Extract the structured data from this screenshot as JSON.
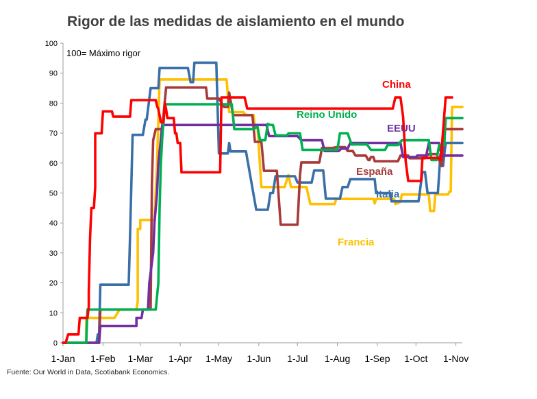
{
  "chart_data": {
    "type": "line",
    "title": "Rigor de las medidas de aislamiento en el mundo",
    "annotation": "100= Máximo rigor",
    "source": "Fuente: Our World in Data, Scotiabank Economics.",
    "ylim": [
      0,
      100
    ],
    "yticks": [
      "0",
      "10",
      "20",
      "30",
      "40",
      "50",
      "60",
      "70",
      "80",
      "90",
      "100"
    ],
    "x_unit": "day of year 2020 (1 = 1-Jan)",
    "xlim": [
      1,
      311
    ],
    "xticks": [
      {
        "label": "1-Jan",
        "day": 1
      },
      {
        "label": "1-Feb",
        "day": 32
      },
      {
        "label": "1-Mar",
        "day": 61
      },
      {
        "label": "1-Apr",
        "day": 92
      },
      {
        "label": "1-May",
        "day": 122
      },
      {
        "label": "1-Jun",
        "day": 153
      },
      {
        "label": "1-Jul",
        "day": 183
      },
      {
        "label": "1-Aug",
        "day": 214
      },
      {
        "label": "1-Sep",
        "day": 245
      },
      {
        "label": "1-Oct",
        "day": 275
      },
      {
        "label": "1-Nov",
        "day": 306
      }
    ],
    "series": [
      {
        "name": "Francia",
        "label": "Francia",
        "color": "#FFC000",
        "points": [
          [
            1,
            0
          ],
          [
            19,
            0
          ],
          [
            19,
            8.3
          ],
          [
            41,
            8.3
          ],
          [
            45,
            11.1
          ],
          [
            58,
            11.1
          ],
          [
            59,
            13.9
          ],
          [
            59,
            38
          ],
          [
            61,
            38
          ],
          [
            61,
            41
          ],
          [
            72,
            41
          ],
          [
            74,
            60
          ],
          [
            76,
            87.9
          ],
          [
            113,
            87.9
          ],
          [
            124,
            87.9
          ],
          [
            128,
            87.9
          ],
          [
            130,
            77
          ],
          [
            141,
            77
          ],
          [
            143,
            76
          ],
          [
            149,
            76
          ],
          [
            150,
            72
          ],
          [
            152,
            72
          ],
          [
            155,
            52
          ],
          [
            158,
            52
          ],
          [
            173,
            52
          ],
          [
            176,
            56
          ],
          [
            178,
            52
          ],
          [
            190,
            52
          ],
          [
            193,
            46.3
          ],
          [
            212,
            46.3
          ],
          [
            213,
            48
          ],
          [
            242,
            48
          ],
          [
            243,
            46.5
          ],
          [
            244,
            48
          ],
          [
            258,
            48
          ],
          [
            259,
            46.3
          ],
          [
            263,
            47
          ],
          [
            264,
            49.5
          ],
          [
            285,
            49.5
          ],
          [
            286,
            44
          ],
          [
            289,
            44
          ],
          [
            290,
            49.5
          ],
          [
            300,
            49.5
          ],
          [
            301,
            50.5
          ],
          [
            302,
            50.5
          ],
          [
            303,
            78.7
          ],
          [
            311,
            78.7
          ]
        ]
      },
      {
        "name": "Italia",
        "label": "Italia",
        "color": "#3A6FA8",
        "points": [
          [
            1,
            0
          ],
          [
            27,
            0
          ],
          [
            28,
            2.8
          ],
          [
            29,
            2.8
          ],
          [
            30,
            19.4
          ],
          [
            52,
            19.4
          ],
          [
            53,
            35
          ],
          [
            55,
            69.4
          ],
          [
            63,
            69.4
          ],
          [
            65,
            74.5
          ],
          [
            66,
            74.5
          ],
          [
            69,
            85
          ],
          [
            75,
            85
          ],
          [
            76,
            91.7
          ],
          [
            98,
            91.7
          ],
          [
            100,
            87
          ],
          [
            102,
            87
          ],
          [
            103,
            93.5
          ],
          [
            120,
            93.5
          ],
          [
            122,
            63.2
          ],
          [
            129,
            63.2
          ],
          [
            130,
            66.7
          ],
          [
            131,
            63.9
          ],
          [
            143,
            63.9
          ],
          [
            151,
            44.4
          ],
          [
            160,
            44.4
          ],
          [
            162,
            50
          ],
          [
            164,
            50
          ],
          [
            166,
            55.6
          ],
          [
            181,
            55.6
          ],
          [
            183,
            53.5
          ],
          [
            194,
            53.5
          ],
          [
            196,
            57.5
          ],
          [
            203,
            57.5
          ],
          [
            205,
            48.1
          ],
          [
            216,
            48.1
          ],
          [
            218,
            52
          ],
          [
            222,
            52
          ],
          [
            224,
            54.6
          ],
          [
            243,
            54.6
          ],
          [
            244,
            50
          ],
          [
            255,
            50
          ],
          [
            256,
            47.2
          ],
          [
            277,
            47.2
          ],
          [
            280,
            57
          ],
          [
            282,
            57
          ],
          [
            284,
            50
          ],
          [
            292,
            50
          ],
          [
            294,
            63
          ],
          [
            296,
            59
          ],
          [
            298,
            66.7
          ],
          [
            311,
            66.7
          ]
        ]
      },
      {
        "name": "España",
        "label": "España",
        "color": "#A83A3A",
        "points": [
          [
            1,
            0
          ],
          [
            29,
            0
          ],
          [
            30,
            11.1
          ],
          [
            69,
            11.1
          ],
          [
            70,
            53
          ],
          [
            71,
            67.6
          ],
          [
            73,
            71.3
          ],
          [
            78,
            71.3
          ],
          [
            81,
            85.2
          ],
          [
            101,
            85.2
          ],
          [
            104,
            85.2
          ],
          [
            112,
            85.2
          ],
          [
            113,
            81.5
          ],
          [
            122,
            81.5
          ],
          [
            126,
            78.7
          ],
          [
            129,
            78.7
          ],
          [
            130,
            83.5
          ],
          [
            133,
            76
          ],
          [
            148,
            76
          ],
          [
            150,
            67.1
          ],
          [
            155,
            67.1
          ],
          [
            157,
            57.4
          ],
          [
            167,
            57.4
          ],
          [
            170,
            39.4
          ],
          [
            183,
            39.4
          ],
          [
            185,
            56
          ],
          [
            186,
            60.2
          ],
          [
            200,
            60.2
          ],
          [
            202,
            65
          ],
          [
            210,
            65
          ],
          [
            213,
            65.3
          ],
          [
            220,
            65.3
          ],
          [
            222,
            64
          ],
          [
            226,
            64
          ],
          [
            228,
            62.5
          ],
          [
            236,
            62.5
          ],
          [
            238,
            61
          ],
          [
            239,
            61
          ],
          [
            240,
            62
          ],
          [
            242,
            62
          ],
          [
            243,
            60.6
          ],
          [
            261,
            60.6
          ],
          [
            263,
            62.5
          ],
          [
            269,
            62.5
          ],
          [
            270,
            61.6
          ],
          [
            282,
            61.6
          ],
          [
            285,
            63
          ],
          [
            291,
            63
          ],
          [
            293,
            61
          ],
          [
            295,
            59
          ],
          [
            297,
            71.3
          ],
          [
            305,
            71.3
          ],
          [
            306,
            71.3
          ],
          [
            311,
            71.3
          ]
        ]
      },
      {
        "name": "EEUU",
        "label": "EEUU",
        "color": "#7030A0",
        "points": [
          [
            1,
            0
          ],
          [
            29,
            0
          ],
          [
            30,
            5.6
          ],
          [
            57,
            5.6
          ],
          [
            58,
            5.6
          ],
          [
            58,
            8.3
          ],
          [
            62,
            8.3
          ],
          [
            63,
            11.1
          ],
          [
            67,
            11.1
          ],
          [
            68,
            20
          ],
          [
            71,
            30
          ],
          [
            72,
            40
          ],
          [
            74,
            50
          ],
          [
            75,
            60
          ],
          [
            77,
            68
          ],
          [
            78,
            72.7
          ],
          [
            140,
            72.7
          ],
          [
            141,
            72.7
          ],
          [
            159,
            72.7
          ],
          [
            161,
            69
          ],
          [
            183,
            69
          ],
          [
            186,
            67.6
          ],
          [
            202,
            67.6
          ],
          [
            204,
            64
          ],
          [
            215,
            64
          ],
          [
            217,
            64.8
          ],
          [
            222,
            64.8
          ],
          [
            224,
            66.7
          ],
          [
            263,
            66.7
          ],
          [
            265,
            62
          ],
          [
            275,
            62
          ],
          [
            276,
            62.5
          ],
          [
            283,
            62.5
          ],
          [
            285,
            66.7
          ],
          [
            293,
            66.7
          ],
          [
            295,
            62.5
          ],
          [
            311,
            62.5
          ]
        ]
      },
      {
        "name": "Reino Unido",
        "label": "Reino Unido",
        "color": "#00B050",
        "points": [
          [
            1,
            0
          ],
          [
            19,
            0
          ],
          [
            20,
            11.1
          ],
          [
            48,
            11.1
          ],
          [
            50,
            11.1
          ],
          [
            73,
            11.1
          ],
          [
            75,
            20
          ],
          [
            76,
            45
          ],
          [
            77,
            60
          ],
          [
            78,
            68
          ],
          [
            80,
            79.6
          ],
          [
            129,
            79.6
          ],
          [
            132,
            79.6
          ],
          [
            134,
            71.3
          ],
          [
            149,
            71.3
          ],
          [
            151,
            72
          ],
          [
            152,
            72
          ],
          [
            154,
            67.6
          ],
          [
            158,
            67.6
          ],
          [
            160,
            73.1
          ],
          [
            162,
            72.7
          ],
          [
            164,
            72.7
          ],
          [
            166,
            69.2
          ],
          [
            175,
            69.2
          ],
          [
            176,
            69.9
          ],
          [
            185,
            69.9
          ],
          [
            187,
            64.4
          ],
          [
            214,
            64.4
          ],
          [
            216,
            69.9
          ],
          [
            222,
            69.9
          ],
          [
            225,
            66.2
          ],
          [
            237,
            66.2
          ],
          [
            240,
            64.4
          ],
          [
            251,
            64.4
          ],
          [
            253,
            66
          ],
          [
            261,
            66
          ],
          [
            264,
            67.6
          ],
          [
            285,
            67.6
          ],
          [
            287,
            61
          ],
          [
            291,
            61
          ],
          [
            293,
            66
          ],
          [
            297,
            66
          ],
          [
            298,
            75
          ],
          [
            311,
            75
          ]
        ]
      },
      {
        "name": "China",
        "label": "China",
        "color": "#FF0000",
        "points": [
          [
            1,
            0
          ],
          [
            3,
            0
          ],
          [
            5,
            2.8
          ],
          [
            13,
            2.8
          ],
          [
            14,
            8.3
          ],
          [
            20,
            8.3
          ],
          [
            21,
            12
          ],
          [
            21,
            17
          ],
          [
            22,
            35
          ],
          [
            23,
            45
          ],
          [
            25,
            45
          ],
          [
            26,
            52
          ],
          [
            26,
            69.9
          ],
          [
            31,
            69.9
          ],
          [
            32,
            77.2
          ],
          [
            39,
            77.2
          ],
          [
            40,
            75.5
          ],
          [
            53,
            75.5
          ],
          [
            54,
            81
          ],
          [
            73,
            81
          ],
          [
            74,
            79
          ],
          [
            75,
            78
          ],
          [
            77,
            73.6
          ],
          [
            79,
            73.6
          ],
          [
            80,
            80
          ],
          [
            81,
            78
          ],
          [
            82,
            75
          ],
          [
            87,
            75
          ],
          [
            88,
            69.9
          ],
          [
            89,
            69.9
          ],
          [
            90,
            66.7
          ],
          [
            92,
            66.7
          ],
          [
            93,
            56.9
          ],
          [
            123,
            56.9
          ],
          [
            124,
            81.9
          ],
          [
            140,
            81.9
          ],
          [
            142,
            81.9
          ],
          [
            144,
            78.2
          ],
          [
            158,
            78.2
          ],
          [
            160,
            78.2
          ],
          [
            205,
            78.2
          ],
          [
            257,
            78.2
          ],
          [
            259,
            81.9
          ],
          [
            263,
            81.9
          ],
          [
            265,
            75.5
          ],
          [
            267,
            60.6
          ],
          [
            269,
            54
          ],
          [
            279,
            54
          ],
          [
            280,
            61.7
          ],
          [
            293,
            61.7
          ],
          [
            294,
            61
          ],
          [
            295,
            64.8
          ],
          [
            298,
            81.9
          ],
          [
            303,
            81.9
          ]
        ]
      }
    ],
    "labels": [
      {
        "series": "China",
        "text": "China"
      },
      {
        "series": "Reino Unido",
        "text": "Reino Unido"
      },
      {
        "series": "EEUU",
        "text": "EEUU"
      },
      {
        "series": "España",
        "text": "España"
      },
      {
        "series": "Italia",
        "text": "Italia"
      },
      {
        "series": "Francia",
        "text": "Francia"
      }
    ]
  }
}
